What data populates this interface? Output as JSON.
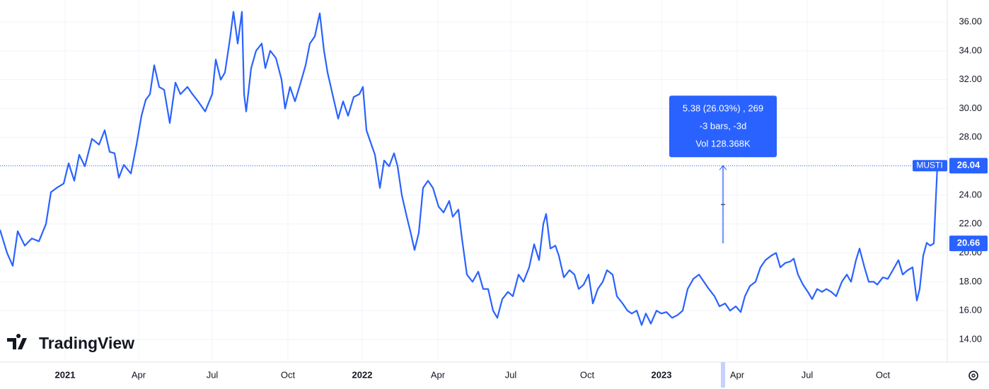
{
  "chart_data": {
    "type": "line",
    "symbol": "MUSTI",
    "watermark": "TradingView",
    "x": [
      0,
      2,
      3.6,
      5,
      7,
      9,
      11,
      13,
      14.4,
      16,
      18,
      19.4,
      21,
      22.4,
      24,
      26,
      28,
      29.6,
      31,
      32.4,
      33.6,
      35,
      37,
      38.6,
      40,
      41.2,
      42.4,
      43.6,
      45,
      46.4,
      48,
      49.6,
      51,
      53,
      54.4,
      56,
      58,
      60,
      61,
      62.4,
      63.6,
      65,
      66,
      67.2,
      68.4,
      69,
      69.6,
      71,
      72.4,
      74,
      75,
      76.4,
      78,
      79.6,
      80.6,
      82,
      83.4,
      85,
      86.4,
      87.6,
      89,
      90.4,
      91.6,
      92.6,
      94,
      95.6,
      97,
      98.4,
      100,
      101.6,
      102.6,
      103.6,
      105,
      106,
      107.4,
      108.6,
      110,
      111.4,
      112.4,
      113.6,
      115,
      116,
      117.2,
      118.4,
      119.6,
      121,
      122.4,
      124,
      125.4,
      127,
      128,
      129.6,
      130.6,
      132,
      133.6,
      135.2,
      136.6,
      138,
      139.4,
      140.6,
      142,
      143.6,
      145,
      146.6,
      148,
      149.6,
      151,
      152.4,
      153.6,
      154.4,
      155.6,
      157,
      158,
      159.4,
      161,
      162.4,
      163.6,
      165,
      166.4,
      167.6,
      169,
      170.4,
      171.6,
      173.2,
      174.4,
      176,
      177.4,
      178.6,
      180,
      181.4,
      182.6,
      184,
      185.6,
      187,
      188.4,
      190,
      191.6,
      193,
      194.4,
      196,
      197.6,
      199,
      200.4,
      202,
      203.4,
      205,
      206.4,
      208,
      209.4,
      210.6,
      212,
      213.6,
      215,
      216.4,
      218,
      219.4,
      220.6,
      222,
      223.4,
      224.4,
      225.6,
      227,
      228.4,
      229.6,
      231,
      232.4,
      233.6,
      235,
      236.4,
      238,
      239.4,
      240.6,
      242,
      243,
      244.4,
      245.6,
      247,
      248,
      249.6,
      251,
      252.4,
      254,
      255.2,
      256.6,
      258,
      259.2,
      260,
      261,
      262,
      263,
      264,
      265
    ],
    "series": [
      {
        "name": "MUSTI",
        "color": "#2962ff",
        "values": [
          21.6,
          20.0,
          19.1,
          21.5,
          20.5,
          21.0,
          20.8,
          22.0,
          24.2,
          24.5,
          24.8,
          26.2,
          25.0,
          26.8,
          26.0,
          27.9,
          27.5,
          28.5,
          27.0,
          26.9,
          25.2,
          26.1,
          25.5,
          27.5,
          29.5,
          30.6,
          31.0,
          33.0,
          31.5,
          31.3,
          29.0,
          31.8,
          31.0,
          31.5,
          31.0,
          30.5,
          29.8,
          31.0,
          33.4,
          32.0,
          32.5,
          34.8,
          36.7,
          34.5,
          36.7,
          31.0,
          29.8,
          32.8,
          34.0,
          34.5,
          32.8,
          34.0,
          33.5,
          32.0,
          30.0,
          31.5,
          30.5,
          31.8,
          33.0,
          34.5,
          35.0,
          36.6,
          34.0,
          32.5,
          31.0,
          29.3,
          30.5,
          29.5,
          30.8,
          31.0,
          31.5,
          28.5,
          27.5,
          26.8,
          24.5,
          26.4,
          26.0,
          26.9,
          26.0,
          24.0,
          22.5,
          21.5,
          20.2,
          21.4,
          24.5,
          25.0,
          24.5,
          23.2,
          22.8,
          23.6,
          22.5,
          23.0,
          21.0,
          18.5,
          18.0,
          18.7,
          17.5,
          17.5,
          16.0,
          15.5,
          16.8,
          17.3,
          17.0,
          18.5,
          18.0,
          19.0,
          20.6,
          19.5,
          22.0,
          22.7,
          20.3,
          20.5,
          19.8,
          18.3,
          18.8,
          18.5,
          17.5,
          17.8,
          18.5,
          16.5,
          17.5,
          18.0,
          18.8,
          18.5,
          17.0,
          16.5,
          16.0,
          15.8,
          16.0,
          15.0,
          15.8,
          15.1,
          16.0,
          15.8,
          15.9,
          15.5,
          15.7,
          16.0,
          17.5,
          18.2,
          18.5,
          18.0,
          17.5,
          17.0,
          16.3,
          16.5,
          16.0,
          16.3,
          15.9,
          17.0,
          17.7,
          18.0,
          19.0,
          19.5,
          19.8,
          20.0,
          19.0,
          19.3,
          19.4,
          19.6,
          18.5,
          17.8,
          17.3,
          16.8,
          17.5,
          17.3,
          17.5,
          17.3,
          17.0,
          18.0,
          18.5,
          18.0,
          19.5,
          20.3,
          19.0,
          18.0,
          18.0,
          17.8,
          18.3,
          18.2,
          18.8,
          19.5,
          18.5,
          18.8,
          19.0,
          16.7,
          17.5,
          19.8,
          20.7,
          20.5,
          20.66,
          26.04
        ]
      }
    ],
    "xlim": [
      0,
      267.6
    ],
    "ylim": [
      12.53,
      37.52
    ],
    "xticks": [
      {
        "value": 18.4,
        "label": "2021"
      },
      {
        "value": 39.2,
        "label": "Apr"
      },
      {
        "value": 60,
        "label": "Jul"
      },
      {
        "value": 81.4,
        "label": "Oct"
      },
      {
        "value": 102.4,
        "label": "2022"
      },
      {
        "value": 123.8,
        "label": "Apr"
      },
      {
        "value": 144.4,
        "label": "Jul"
      },
      {
        "value": 166,
        "label": "Oct"
      },
      {
        "value": 187,
        "label": "2023"
      },
      {
        "value": 208.4,
        "label": "Apr"
      },
      {
        "value": 228.2,
        "label": "Jul"
      },
      {
        "value": 249.6,
        "label": "Oct"
      }
    ],
    "yticks": [
      {
        "value": 14,
        "label": "14.00"
      },
      {
        "value": 16,
        "label": "16.00"
      },
      {
        "value": 18,
        "label": "18.00"
      },
      {
        "value": 20,
        "label": "20.00"
      },
      {
        "value": 22,
        "label": "22.00"
      },
      {
        "value": 24,
        "label": "24.00"
      },
      {
        "value": 26,
        "label": "26.00"
      },
      {
        "value": 28,
        "label": "28.00"
      },
      {
        "value": 30,
        "label": "30.00"
      },
      {
        "value": 32,
        "label": "32.00"
      },
      {
        "value": 34,
        "label": "34.00"
      },
      {
        "value": 36,
        "label": "36.00"
      }
    ],
    "grid": true,
    "price_labels": [
      {
        "value": 26.04,
        "label": "26.04"
      },
      {
        "value": 20.66,
        "label": "20.66"
      }
    ],
    "measure": {
      "x": 204.4,
      "from": 20.66,
      "to": 26.04,
      "lines": [
        "5.38 (26.03%) , 269",
        "-3 bars, -3d",
        "Vol 128.368K"
      ]
    }
  }
}
